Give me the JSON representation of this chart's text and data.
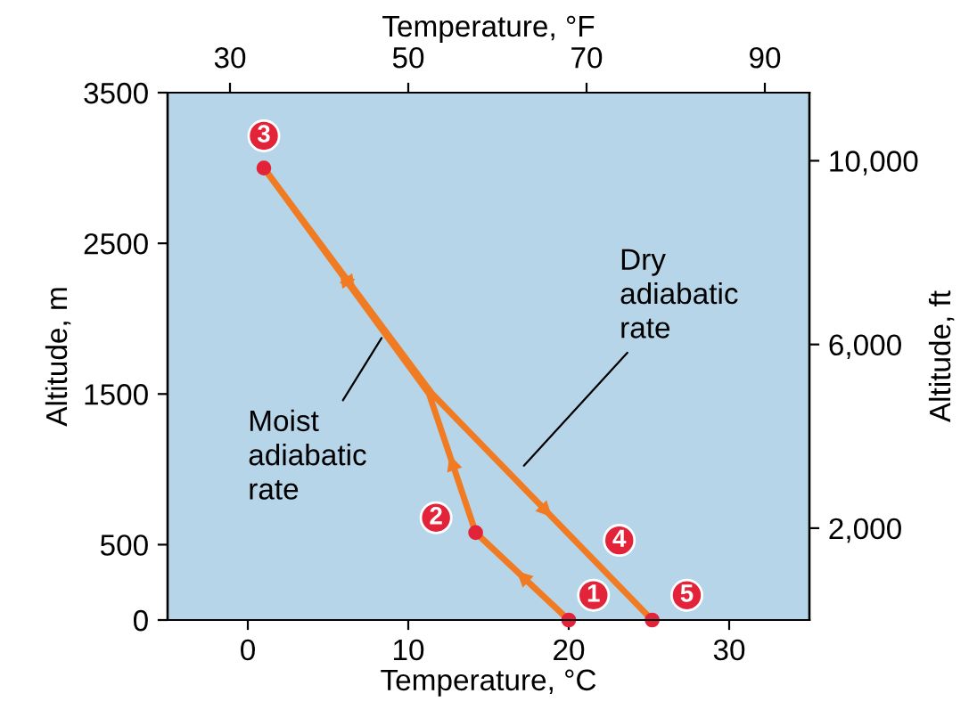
{
  "chart_data": {
    "type": "line",
    "xlabel": "Temperature, °C",
    "x2label": "Temperature, °F",
    "ylabel": "Altitude, m",
    "y2label": "Altitude, ft",
    "xlim": [
      -5,
      35
    ],
    "xticks": [
      0,
      10,
      20,
      30
    ],
    "ylim": [
      0,
      3500
    ],
    "yticks": [
      0,
      500,
      1500,
      2500,
      3500
    ],
    "x2lim": [
      23,
      95
    ],
    "x2ticks": [
      30,
      50,
      70,
      90
    ],
    "y2lim": [
      0,
      11483
    ],
    "y2ticks": [
      {
        "value": 2000,
        "label": "2,000"
      },
      {
        "value": 6000,
        "label": "6,000"
      },
      {
        "value": 10000,
        "label": "10,000"
      }
    ],
    "grid": false,
    "line_style": "solid",
    "series": [
      {
        "color": "#f07b22",
        "x": [
          20,
          14.2,
          11.3,
          1
        ],
        "values": [
          0,
          580,
          1500,
          3000
        ]
      },
      {
        "color": "#f07b22",
        "x": [
          1,
          11.5,
          25.2
        ],
        "values": [
          3000,
          1500,
          0
        ]
      }
    ],
    "annotations": [
      {
        "text": "1",
        "x": 20,
        "y": 0
      },
      {
        "text": "2",
        "x": 14.2,
        "y": 580
      },
      {
        "text": "3",
        "x": 1,
        "y": 3000
      },
      {
        "text": "4",
        "x": 21.3,
        "y": 430
      },
      {
        "text": "5",
        "x": 25.2,
        "y": 0
      },
      {
        "text": "Dry\nadiabatic\nrate",
        "x": 17,
        "y": 1000
      },
      {
        "text": "Moist\nadiabatic\nrate",
        "x": 8.5,
        "y": 1900
      }
    ]
  }
}
